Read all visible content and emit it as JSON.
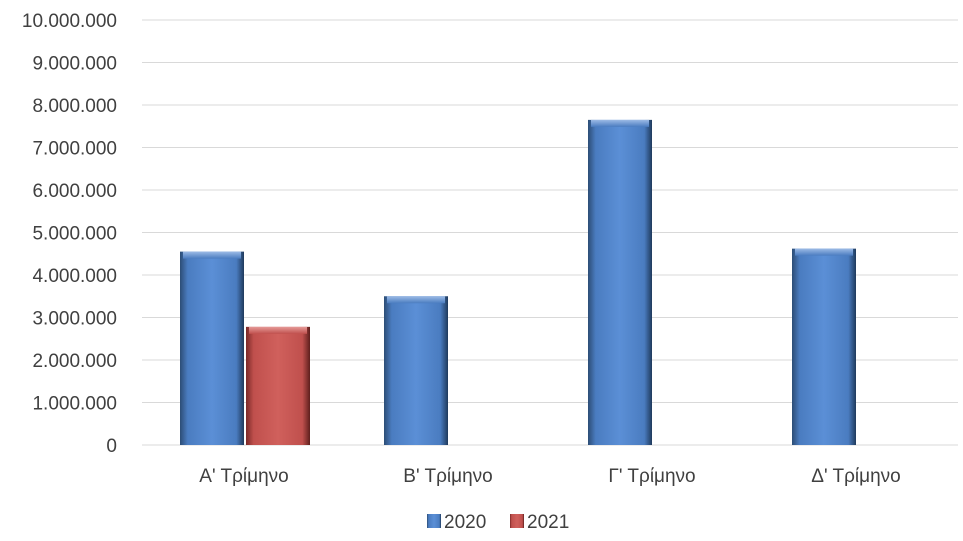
{
  "chart_data": {
    "type": "bar",
    "categories": [
      "Α' Τρίμηνο",
      "Β' Τρίμηνο",
      "Γ' Τρίμηνο",
      "Δ' Τρίμηνο"
    ],
    "series": [
      {
        "name": "2020",
        "values": [
          4550000,
          3500000,
          7650000,
          4620000
        ],
        "color": "#4f81bd"
      },
      {
        "name": "2021",
        "values": [
          2780000,
          null,
          null,
          null
        ],
        "color": "#c0504d"
      }
    ],
    "ylim": [
      0,
      10000000
    ],
    "yticks": [
      0,
      1000000,
      2000000,
      3000000,
      4000000,
      5000000,
      6000000,
      7000000,
      8000000,
      9000000,
      10000000
    ],
    "ytick_labels": [
      "0",
      "1.000.000",
      "2.000.000",
      "3.000.000",
      "4.000.000",
      "5.000.000",
      "6.000.000",
      "7.000.000",
      "8.000.000",
      "9.000.000",
      "10.000.000"
    ],
    "grid": true,
    "legend_position": "bottom",
    "title": "",
    "xlabel": "",
    "ylabel": ""
  }
}
